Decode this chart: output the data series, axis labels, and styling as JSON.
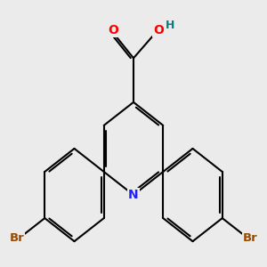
{
  "background_color": "#ebebeb",
  "bond_color": "#000000",
  "bond_width": 1.5,
  "atom_colors": {
    "N": "#2020ff",
    "O": "#ff0000",
    "H": "#008080",
    "Br": "#964B00",
    "C": "#000000"
  },
  "font_size_atoms": 10,
  "font_size_Br": 9.5,
  "font_size_H": 9
}
